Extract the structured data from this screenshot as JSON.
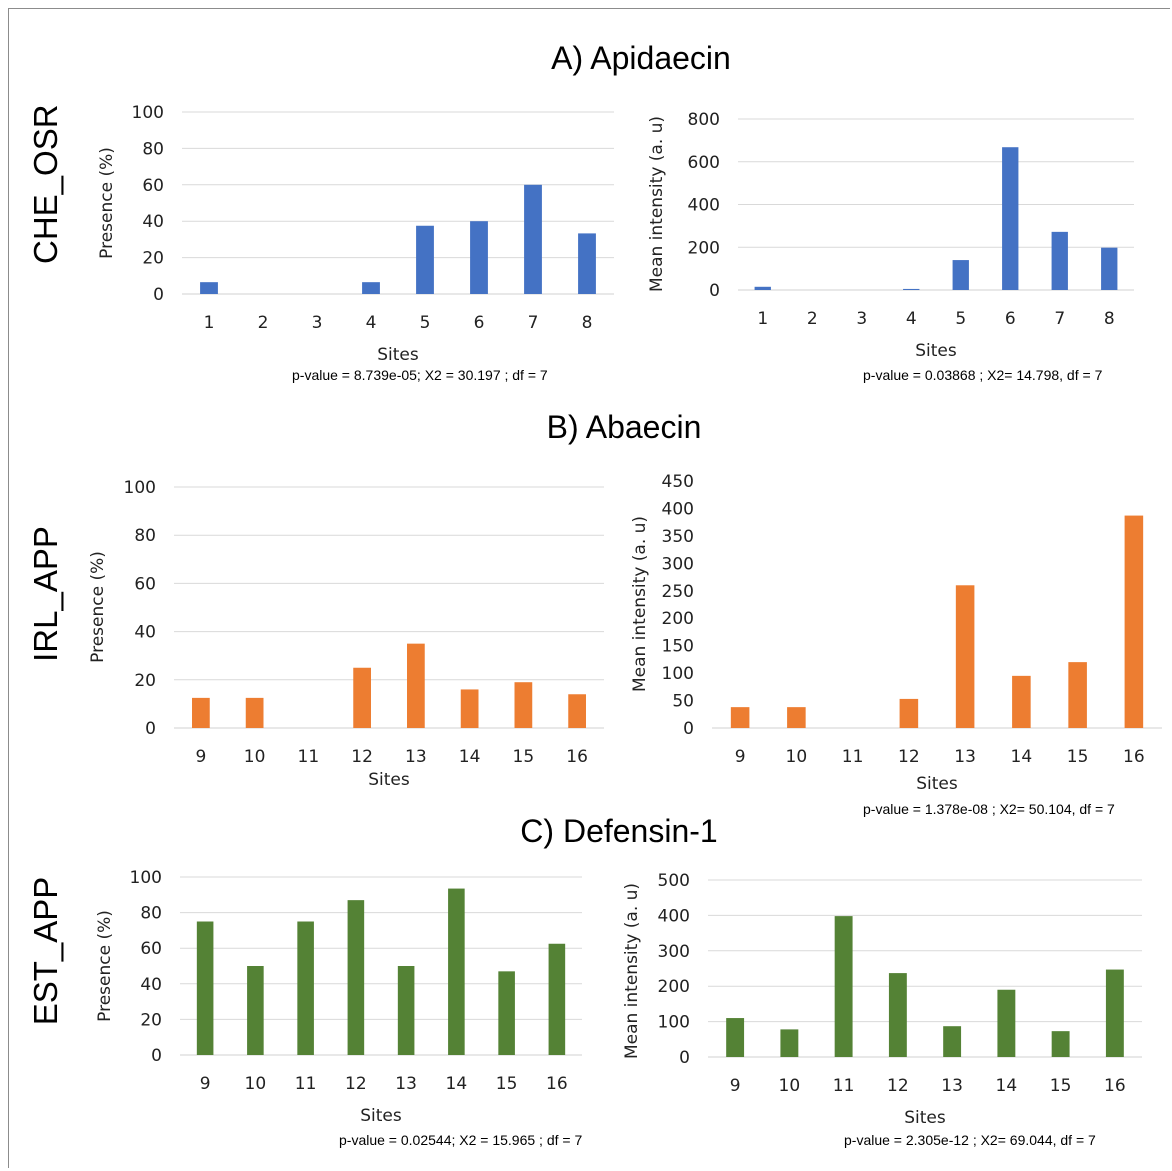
{
  "panels": [
    {
      "title": "A) Apidaecin",
      "row_label": "CHE_OSR",
      "notes": [
        "p-value = 8.739e-05; X2 = 30.197 ; df = 7",
        "p-value = 0.03868 ; X2= 14.798, df = 7"
      ]
    },
    {
      "title": "B) Abaecin",
      "row_label": "IRL_APP",
      "notes": [
        "",
        "p-value = 1.378e-08 ; X2= 50.104, df = 7"
      ]
    },
    {
      "title": "C) Defensin-1",
      "row_label": "EST_APP",
      "notes": [
        "p-value = 0.02544; X2 = 15.965 ; df = 7",
        "p-value = 2.305e-12 ; X2= 69.044, df = 7"
      ]
    }
  ],
  "colors": {
    "blue": "#4472C4",
    "orange": "#ED7D31",
    "green": "#548235",
    "grid": "#d9d9d9"
  },
  "chart_data": [
    {
      "type": "bar",
      "categories": [
        "1",
        "2",
        "3",
        "4",
        "5",
        "6",
        "7",
        "8"
      ],
      "values": [
        6.5,
        0,
        0,
        6.5,
        37.5,
        40,
        60,
        33.3
      ],
      "xlabel": "Sites",
      "ylabel": "Presence (%)",
      "ylim": [
        0,
        100
      ],
      "yticks": [
        0,
        20,
        40,
        60,
        80,
        100
      ],
      "color": "blue",
      "grid": true
    },
    {
      "type": "bar",
      "categories": [
        "1",
        "2",
        "3",
        "4",
        "5",
        "6",
        "7",
        "8"
      ],
      "values": [
        15,
        0,
        0,
        5,
        140,
        668,
        272,
        198
      ],
      "xlabel": "Sites",
      "ylabel": "Mean intensity (a. u)",
      "ylim": [
        0,
        800
      ],
      "yticks": [
        0,
        200,
        400,
        600,
        800
      ],
      "color": "blue",
      "grid": true
    },
    {
      "type": "bar",
      "categories": [
        "9",
        "10",
        "11",
        "12",
        "13",
        "14",
        "15",
        "16"
      ],
      "values": [
        12.5,
        12.5,
        0,
        25,
        35,
        16,
        19,
        14
      ],
      "xlabel": "Sites",
      "ylabel": "Presence (%)",
      "ylim": [
        0,
        100
      ],
      "yticks": [
        0,
        20,
        40,
        60,
        80,
        100
      ],
      "color": "orange",
      "grid": true
    },
    {
      "type": "bar",
      "categories": [
        "9",
        "10",
        "11",
        "12",
        "13",
        "14",
        "15",
        "16"
      ],
      "values": [
        38,
        38,
        0,
        53,
        260,
        95,
        120,
        387
      ],
      "xlabel": "Sites",
      "ylabel": "Mean intensity (a. u)",
      "ylim": [
        0,
        450
      ],
      "yticks": [
        0,
        50,
        100,
        150,
        200,
        250,
        300,
        350,
        400,
        450
      ],
      "color": "orange",
      "grid": false
    },
    {
      "type": "bar",
      "categories": [
        "9",
        "10",
        "11",
        "12",
        "13",
        "14",
        "15",
        "16"
      ],
      "values": [
        75,
        50,
        75,
        87,
        50,
        93.5,
        47,
        62.5
      ],
      "xlabel": "Sites",
      "ylabel": "Presence (%)",
      "ylim": [
        0,
        100
      ],
      "yticks": [
        0,
        20,
        40,
        60,
        80,
        100
      ],
      "color": "green",
      "grid": true
    },
    {
      "type": "bar",
      "categories": [
        "9",
        "10",
        "11",
        "12",
        "13",
        "14",
        "15",
        "16"
      ],
      "values": [
        110,
        78,
        398,
        237,
        87,
        190,
        73,
        247
      ],
      "xlabel": "Sites",
      "ylabel": "Mean intensity (a. u)",
      "ylim": [
        0,
        500
      ],
      "yticks": [
        0,
        100,
        200,
        300,
        400,
        500
      ],
      "color": "green",
      "grid": true
    }
  ]
}
